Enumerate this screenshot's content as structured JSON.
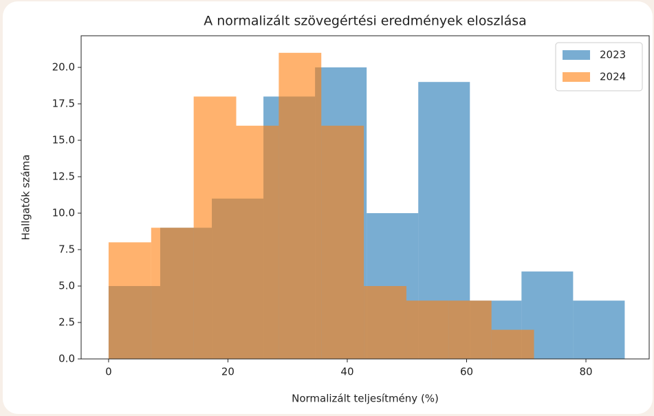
{
  "chart_data": {
    "type": "histogram",
    "title": "A normalizált szövegértési eredmények eloszlása",
    "xlabel": "Normalizált teljesítmény (%)",
    "ylabel": "Hallgatók száma",
    "series": [
      {
        "name": "2023",
        "color": "#1f77b4",
        "alpha": 0.6,
        "bins": [
          0,
          8.65,
          17.3,
          25.95,
          34.6,
          43.25,
          51.9,
          60.55,
          69.2,
          77.85,
          86.5
        ],
        "values": [
          5,
          9,
          11,
          18,
          20,
          10,
          19,
          4,
          6,
          4
        ]
      },
      {
        "name": "2024",
        "color": "#ff7f0e",
        "alpha": 0.6,
        "bins": [
          0,
          7.13,
          14.26,
          21.39,
          28.52,
          35.65,
          42.78,
          49.91,
          57.04,
          64.17,
          71.3
        ],
        "values": [
          8,
          9,
          18,
          16,
          21,
          16,
          5,
          4,
          4,
          2
        ]
      }
    ],
    "xlim": [
      -4.6,
      90.6
    ],
    "ylim": [
      0,
      22.17
    ],
    "xticks": [
      0,
      20,
      40,
      60,
      80
    ],
    "yticks": [
      {
        "value": 0,
        "label": "0.0"
      },
      {
        "value": 2.5,
        "label": "2.5"
      },
      {
        "value": 5,
        "label": "5.0"
      },
      {
        "value": 7.5,
        "label": "7.5"
      },
      {
        "value": 10,
        "label": "10.0"
      },
      {
        "value": 12.5,
        "label": "12.5"
      },
      {
        "value": 15,
        "label": "15.0"
      },
      {
        "value": 17.5,
        "label": "17.5"
      },
      {
        "value": 20,
        "label": "20.0"
      }
    ],
    "legend": "upper right"
  }
}
